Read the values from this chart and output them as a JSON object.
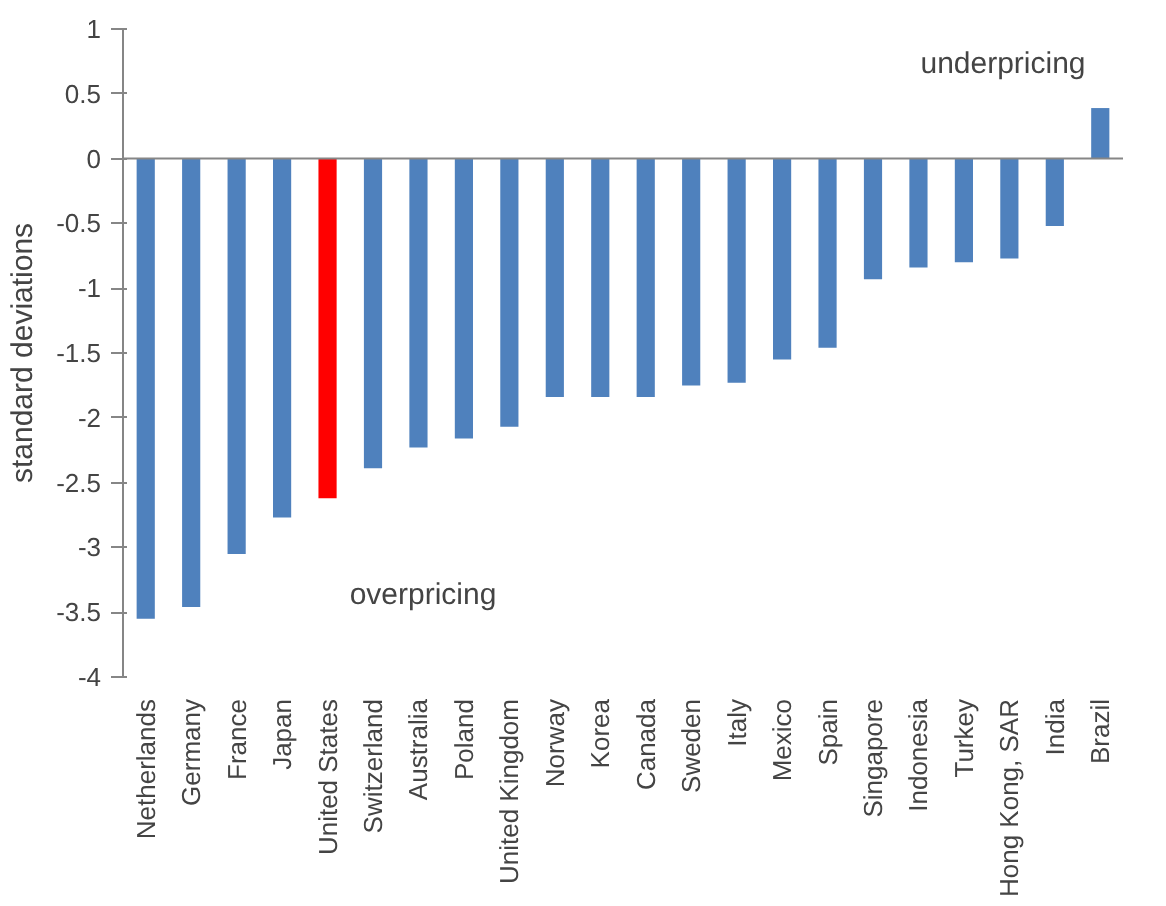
{
  "chart_data": {
    "type": "bar",
    "ylabel": "standard deviations",
    "categories": [
      "Netherlands",
      "Germany",
      "France",
      "Japan",
      "United States",
      "Switzerland",
      "Australia",
      "Poland",
      "United Kingdom",
      "Norway",
      "Korea",
      "Canada",
      "Sweden",
      "Italy",
      "Mexico",
      "Spain",
      "Singapore",
      "Indonesia",
      "Turkey",
      "Hong Kong, SAR",
      "India",
      "Brazil"
    ],
    "values": [
      -3.55,
      -3.46,
      -3.05,
      -2.77,
      -2.62,
      -2.39,
      -2.23,
      -2.16,
      -2.07,
      -1.84,
      -1.84,
      -1.84,
      -1.75,
      -1.73,
      -1.55,
      -1.46,
      -0.93,
      -0.84,
      -0.8,
      -0.77,
      -0.52,
      0.39
    ],
    "colors": [
      "#4f81bd",
      "#4f81bd",
      "#4f81bd",
      "#4f81bd",
      "#ff0000",
      "#4f81bd",
      "#4f81bd",
      "#4f81bd",
      "#4f81bd",
      "#4f81bd",
      "#4f81bd",
      "#4f81bd",
      "#4f81bd",
      "#4f81bd",
      "#4f81bd",
      "#4f81bd",
      "#4f81bd",
      "#4f81bd",
      "#4f81bd",
      "#4f81bd",
      "#4f81bd",
      "#4f81bd"
    ],
    "ylim": [
      -4,
      1
    ],
    "yticks": [
      -4,
      -3.5,
      -3,
      -2.5,
      -2,
      -1.5,
      -1,
      -0.5,
      0,
      0.5,
      1
    ],
    "annotations": [
      "underpricing",
      "overpricing"
    ]
  }
}
